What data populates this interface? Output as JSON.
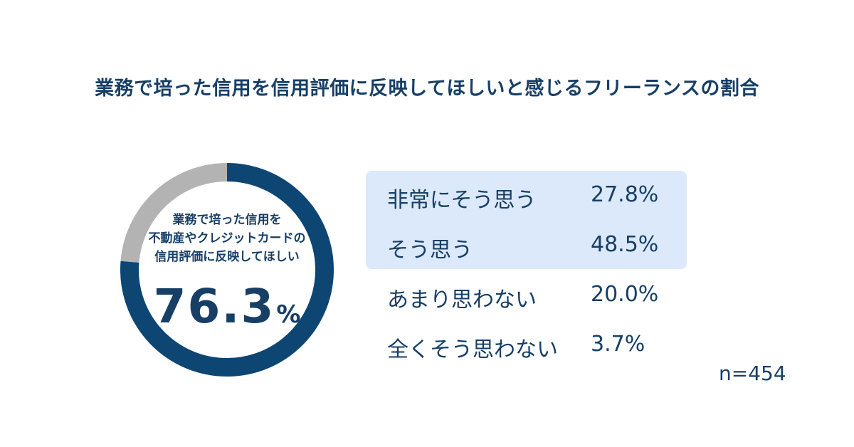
{
  "title": "業務で培った信用を信用評価に反映してほしいと感じるフリーランスの割合",
  "center": {
    "lines": [
      "業務で培った信用を",
      "不動産やクレジットカードの",
      "信用評価に反映してほしい"
    ],
    "value": "76.3",
    "unit": "%"
  },
  "sample": "n=454",
  "colors": {
    "highlight": "#0d4573",
    "rest": "#b3b3b3",
    "text": "#173f66",
    "highlight_bg": "#dce9fb"
  },
  "chart_data": {
    "type": "pie",
    "title": "業務で培った信用を信用評価に反映してほしいと感じるフリーランスの割合",
    "donut": [
      {
        "name": "反映してほしい",
        "value": 76.3
      },
      {
        "name": "",
        "value": 23.7
      }
    ],
    "categories": [
      "非常にそう思う",
      "そう思う",
      "あまり思わない",
      "全くそう思わない"
    ],
    "values": [
      27.8,
      48.5,
      20.0,
      3.7
    ],
    "value_labels": [
      "27.8%",
      "48.5%",
      "20.0%",
      "3.7%"
    ],
    "n": 454
  }
}
